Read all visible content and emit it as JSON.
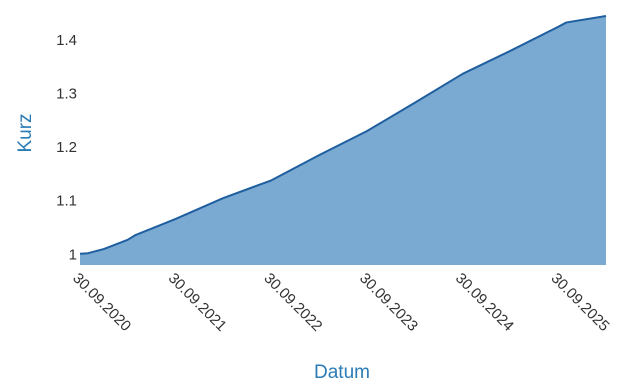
{
  "chart_data": {
    "type": "area",
    "title": "",
    "xlabel": "Datum",
    "ylabel": "Kurz",
    "x_ticks": [
      "30.09.2020",
      "30.09.2021",
      "30.09.2022",
      "30.09.2023",
      "30.09.2024",
      "30.09.2025"
    ],
    "y_ticks": [
      "1",
      "1.1",
      "1.2",
      "1.3",
      "1.4"
    ],
    "y_tick_values": [
      1.0,
      1.1,
      1.2,
      1.3,
      1.4
    ],
    "xlim": [
      "30.09.2020",
      "31.03.2026"
    ],
    "ylim": [
      0.98,
      1.445
    ],
    "grid": false,
    "legend": "none",
    "series": [
      {
        "x": [
          "30.09.2020",
          "31.10.2020",
          "31.12.2020",
          "31.03.2021",
          "30.04.2021",
          "30.09.2021",
          "31.03.2022",
          "30.09.2022",
          "31.03.2023",
          "30.09.2023",
          "31.03.2024",
          "30.09.2024",
          "31.03.2025",
          "30.09.2025",
          "31.10.2025",
          "31.03.2026"
        ],
        "values": [
          1.001,
          1.002,
          1.01,
          1.027,
          1.036,
          1.066,
          1.105,
          1.138,
          1.185,
          1.23,
          1.283,
          1.337,
          1.38,
          1.425,
          1.433,
          1.445
        ]
      }
    ],
    "colors": {
      "fill": "#7aa9d2",
      "line": "#1f5f9f",
      "axis_title": "#2b7bb5",
      "tick_label": "#333333"
    }
  }
}
